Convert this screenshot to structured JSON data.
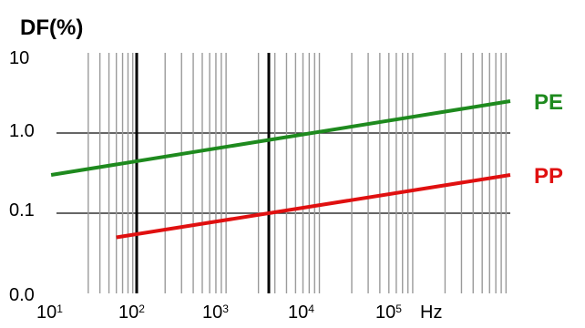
{
  "chart_data": {
    "type": "line",
    "title": "DF(%)",
    "xlabel": "Hz",
    "x_scale": "log",
    "y_scale": "log",
    "xlim": [
      10,
      1000000
    ],
    "ylim": [
      0.01,
      10
    ],
    "x_ticks": [
      {
        "base": "10",
        "exp": "1"
      },
      {
        "base": "10",
        "exp": "2"
      },
      {
        "base": "10",
        "exp": "3"
      },
      {
        "base": "10",
        "exp": "4"
      },
      {
        "base": "10",
        "exp": "5"
      }
    ],
    "y_ticks": [
      {
        "label": "10"
      },
      {
        "label": "1.0"
      },
      {
        "label": "0.1"
      },
      {
        "label": "0.0"
      }
    ],
    "grid": true,
    "series": [
      {
        "name": "PE",
        "color": "#1e8a1e",
        "x": [
          12,
          1000000
        ],
        "y": [
          0.3,
          2.5
        ]
      },
      {
        "name": "PP",
        "color": "#e01010",
        "x": [
          60,
          1000000
        ],
        "y": [
          0.05,
          0.3
        ]
      }
    ]
  }
}
